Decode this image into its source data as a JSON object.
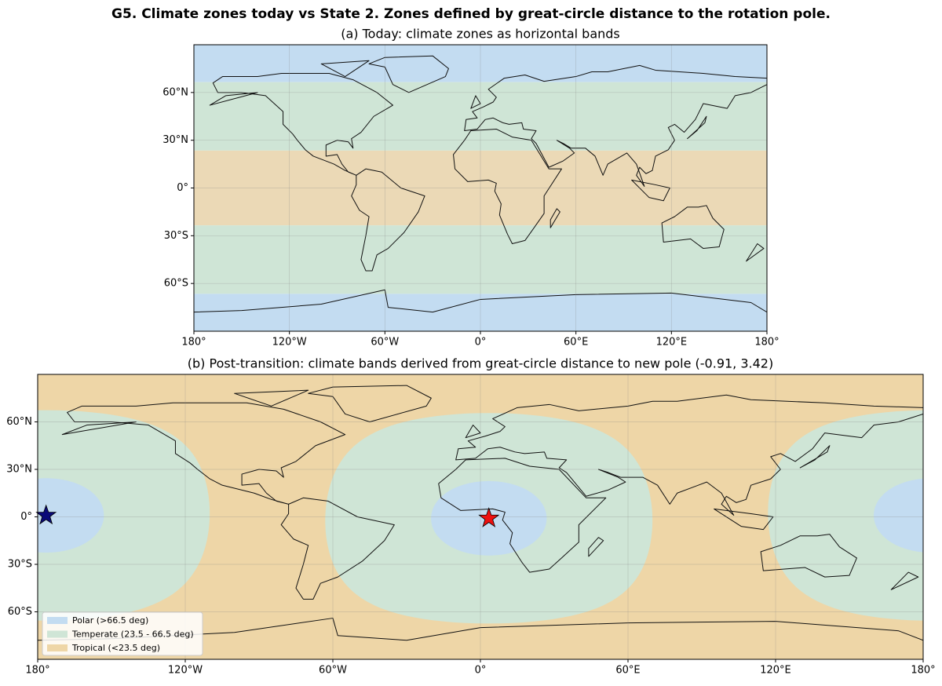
{
  "title": "G5.  Climate zones today vs State 2.  Zones defined by great-circle distance to the rotation pole.",
  "chart_data": [
    {
      "type": "bands",
      "title": "(a)  Today: climate zones as horizontal bands",
      "xlim": [
        -180,
        180
      ],
      "ylim": [
        -90,
        90
      ],
      "xticks": [
        {
          "value": -180,
          "label": "180°"
        },
        {
          "value": -120,
          "label": "120°W"
        },
        {
          "value": -60,
          "label": "60°W"
        },
        {
          "value": 0,
          "label": "0°"
        },
        {
          "value": 60,
          "label": "60°E"
        },
        {
          "value": 120,
          "label": "120°E"
        },
        {
          "value": 180,
          "label": "180°"
        }
      ],
      "yticks": [
        {
          "value": 60,
          "label": "60°N"
        },
        {
          "value": 30,
          "label": "30°N"
        },
        {
          "value": 0,
          "label": "0°"
        },
        {
          "value": -30,
          "label": "30°S"
        },
        {
          "value": -60,
          "label": "60°S"
        }
      ],
      "thresholds": {
        "tropical": 23.5,
        "polar": 66.5
      },
      "colors": {
        "polar": "#c3dcf1",
        "temperate": "#cfe5d6",
        "tropical": "#ebd9b6"
      },
      "grid": true
    },
    {
      "type": "pole-zones",
      "title": "(b)  Post-transition: climate bands derived from great-circle distance to new pole (-0.91, 3.42)",
      "xlim": [
        -180,
        180
      ],
      "ylim": [
        -90,
        90
      ],
      "xticks": [
        {
          "value": -180,
          "label": "180°"
        },
        {
          "value": -120,
          "label": "120°W"
        },
        {
          "value": -60,
          "label": "60°W"
        },
        {
          "value": 0,
          "label": "0°"
        },
        {
          "value": 60,
          "label": "60°E"
        },
        {
          "value": 120,
          "label": "120°E"
        },
        {
          "value": 180,
          "label": "180°"
        }
      ],
      "yticks": [
        {
          "value": 60,
          "label": "60°N"
        },
        {
          "value": 30,
          "label": "30°N"
        },
        {
          "value": 0,
          "label": "0°"
        },
        {
          "value": -30,
          "label": "30°S"
        },
        {
          "value": -60,
          "label": "60°S"
        }
      ],
      "pole": {
        "lat": -0.91,
        "lon": 3.42
      },
      "thresholds": {
        "tropical": 23.5,
        "polar": 66.5
      },
      "colors": {
        "polar": "#c3dcf1",
        "temperate": "#cfe5d6",
        "tropical": "#eed6a7"
      },
      "legend": [
        {
          "name": "Polar (>66.5 deg)",
          "zone": "polar"
        },
        {
          "name": "Temperate (23.5 - 66.5 deg)",
          "zone": "temperate"
        },
        {
          "name": "Tropical (<23.5 deg)",
          "zone": "tropical"
        }
      ],
      "legend_loc": "lower left",
      "grid": true
    }
  ]
}
